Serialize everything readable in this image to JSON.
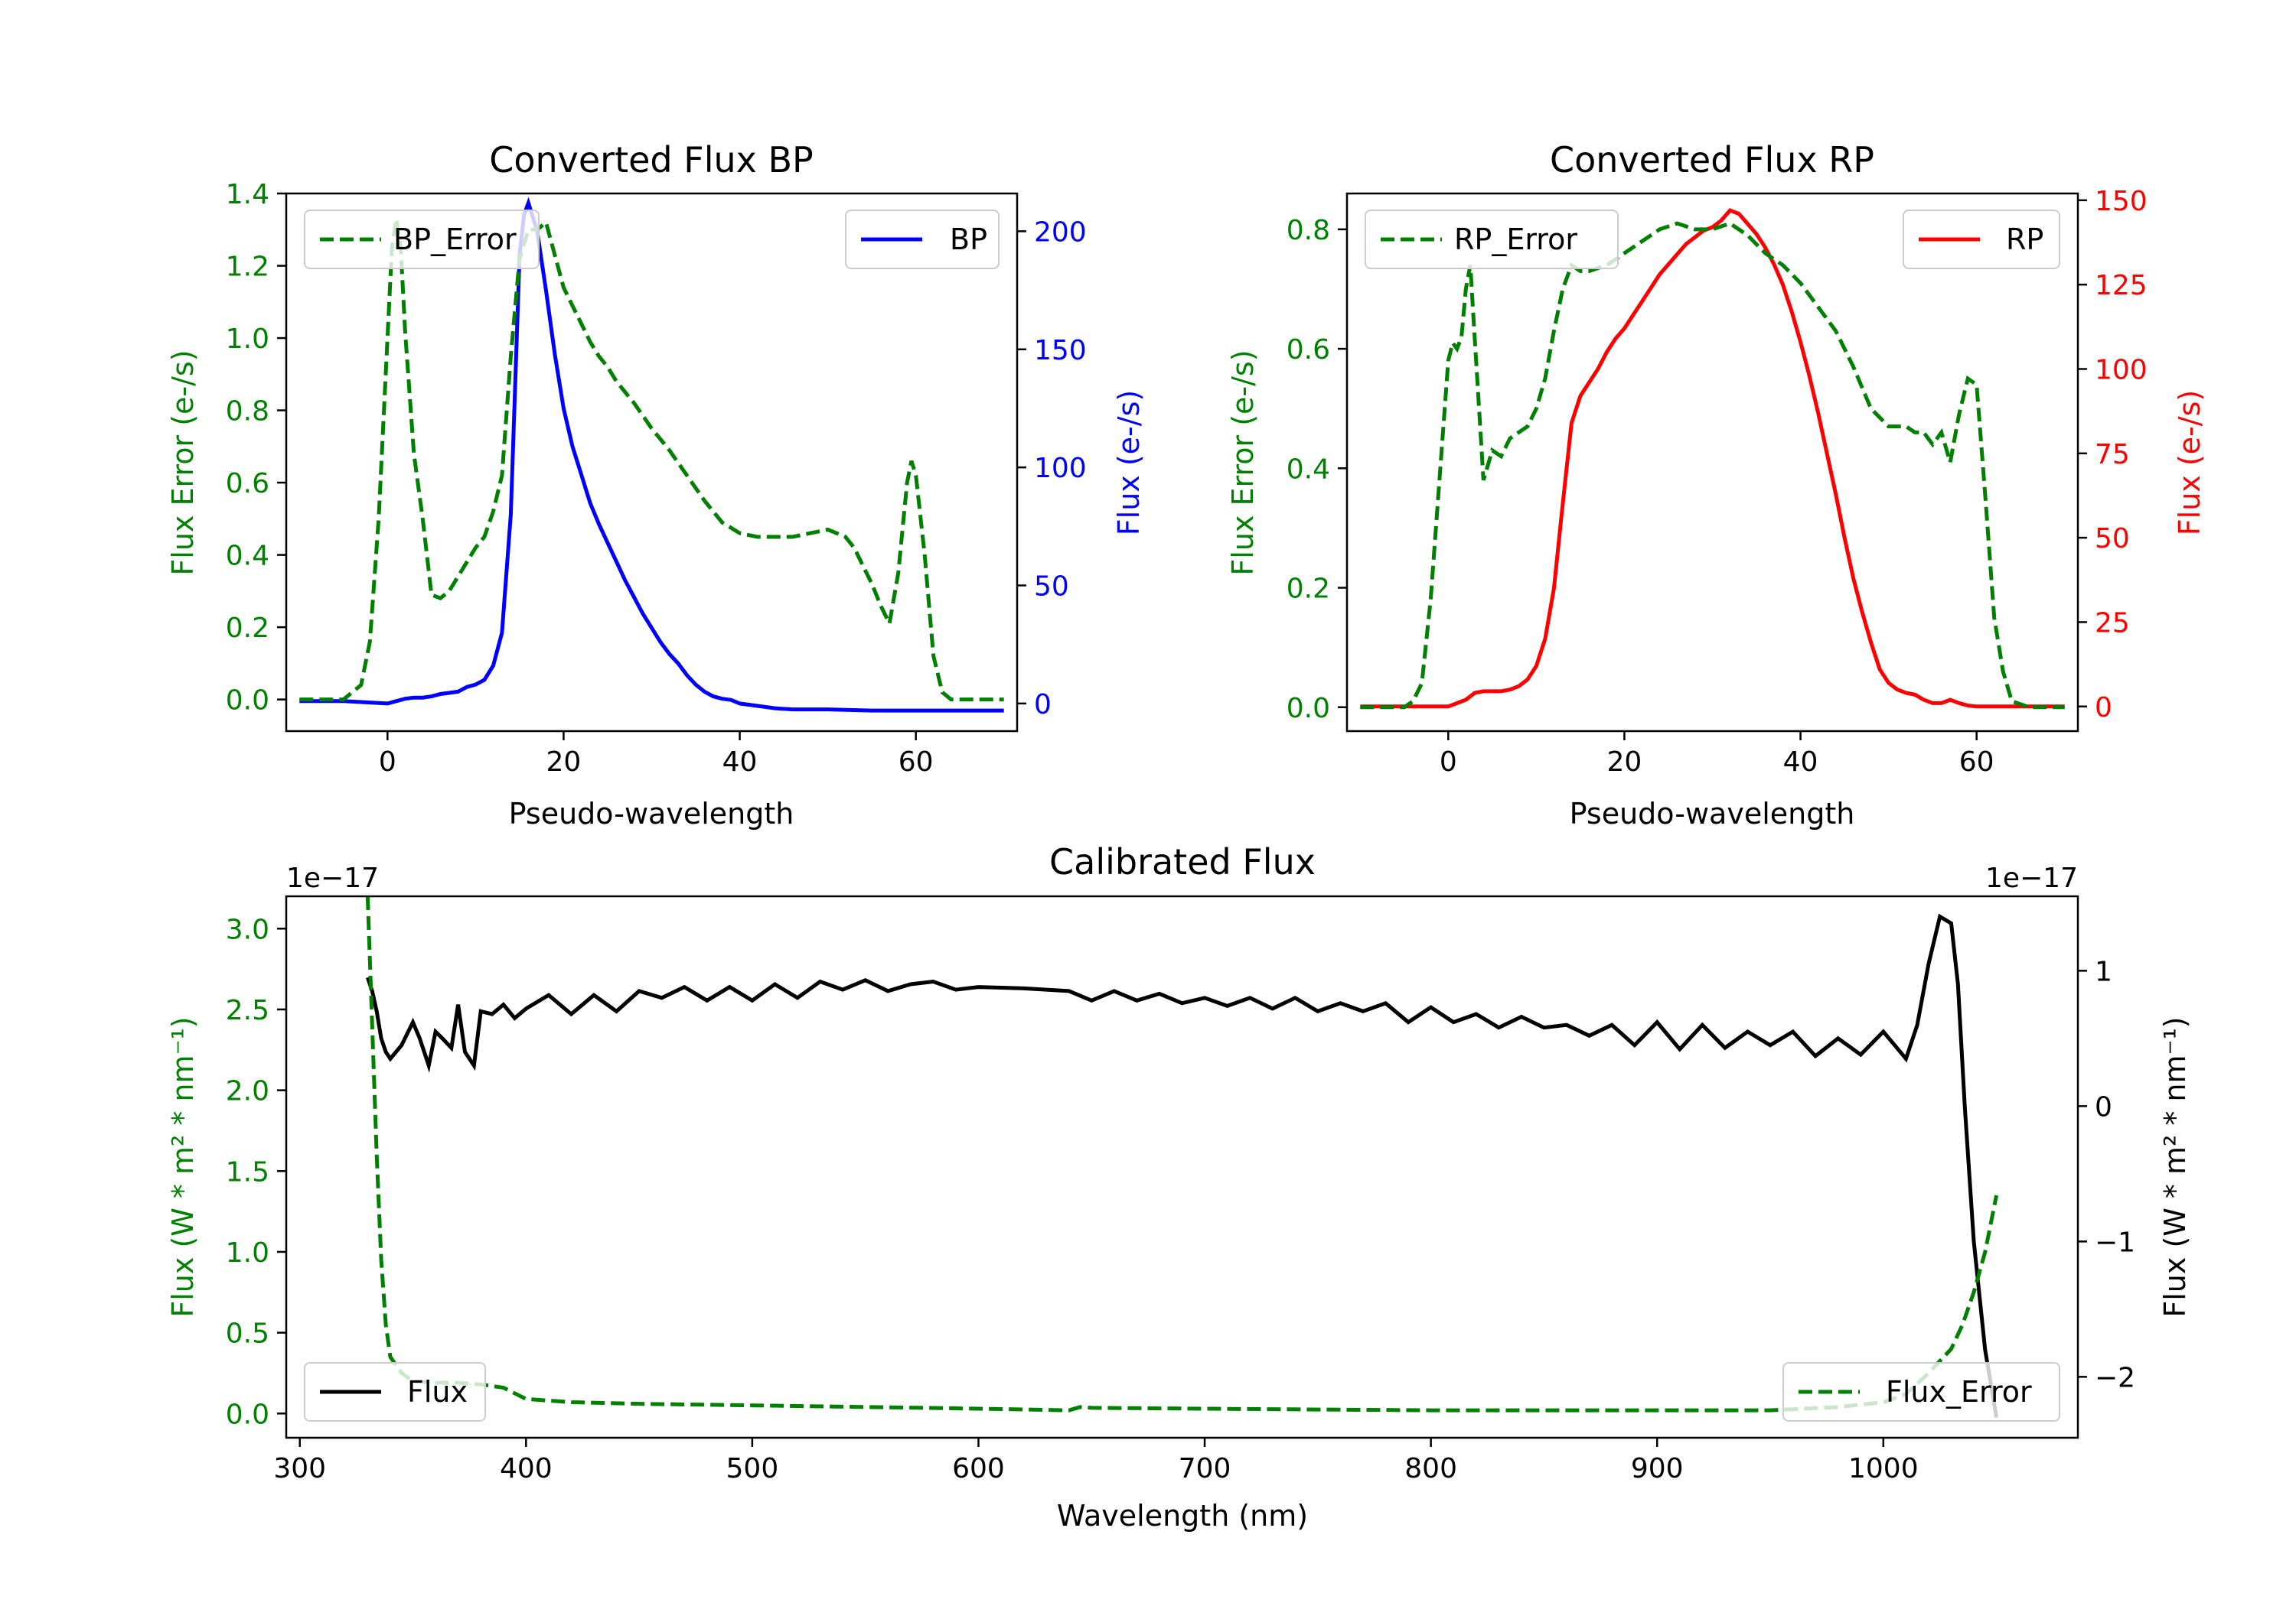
{
  "charts": [
    {
      "title": "Converted Flux BP",
      "xlabel": "Pseudo-wavelength",
      "ylabel_left": "Flux Error (e-/s)",
      "ylabel_right": "Flux (e-/s)",
      "left_color": "#008000",
      "right_color": "#0000ff",
      "xlim": [
        -11.5,
        71.5
      ],
      "ylim_left": [
        -0.0875,
        1.4
      ],
      "ylim_right": [
        -11.7,
        216
      ],
      "xticks": [
        0,
        20,
        40,
        60
      ],
      "yticks_left": [
        0.0,
        0.2,
        0.4,
        0.6,
        0.8,
        1.0,
        1.2,
        1.4
      ],
      "yticks_right": [
        0,
        50,
        100,
        150,
        200
      ],
      "tick_decimals_left": 1,
      "tick_decimals_right": 0,
      "offset_left": "",
      "offset_right": "",
      "legend_left": {
        "label": "BP_Error",
        "position": "upper-left"
      },
      "legend_right": {
        "label": "BP",
        "position": "upper-right"
      },
      "series_left": {
        "name": "BP_Error",
        "style": "dashed",
        "x": [
          -10,
          -7,
          -5,
          -3,
          -2,
          -1,
          0,
          0.5,
          1,
          1.5,
          2,
          3,
          4,
          5,
          6,
          7,
          8,
          9,
          10,
          11,
          12,
          13,
          14,
          15,
          16,
          17,
          18,
          19,
          20,
          21,
          22,
          23,
          24,
          25,
          26,
          28,
          30,
          32,
          34,
          36,
          38,
          40,
          42,
          44,
          46,
          48,
          50,
          51,
          52,
          53,
          54,
          55,
          56,
          57,
          58,
          59,
          59.5,
          60,
          61,
          62,
          63,
          64,
          66,
          68,
          70
        ],
        "y": [
          0,
          0,
          0,
          0.04,
          0.16,
          0.5,
          1.0,
          1.25,
          1.33,
          1.25,
          1.02,
          0.68,
          0.5,
          0.29,
          0.28,
          0.3,
          0.34,
          0.38,
          0.42,
          0.45,
          0.52,
          0.62,
          0.95,
          1.22,
          1.3,
          1.3,
          1.32,
          1.23,
          1.14,
          1.09,
          1.04,
          0.99,
          0.95,
          0.92,
          0.88,
          0.82,
          0.75,
          0.69,
          0.62,
          0.55,
          0.49,
          0.46,
          0.45,
          0.45,
          0.45,
          0.46,
          0.47,
          0.46,
          0.45,
          0.42,
          0.37,
          0.32,
          0.26,
          0.21,
          0.35,
          0.6,
          0.66,
          0.62,
          0.4,
          0.12,
          0.02,
          0,
          0,
          0,
          0
        ]
      },
      "series_right": {
        "name": "BP",
        "style": "solid",
        "x": [
          -10,
          -5,
          0,
          1,
          2,
          3,
          4,
          5,
          6,
          7,
          8,
          9,
          10,
          11,
          12,
          13,
          14,
          15,
          15.5,
          16,
          17,
          18,
          19,
          20,
          21,
          22,
          23,
          24,
          25,
          26,
          27,
          28,
          29,
          30,
          31,
          32,
          33,
          34,
          35,
          36,
          37,
          38,
          39,
          40,
          42,
          44,
          46,
          48,
          50,
          55,
          60,
          65,
          70
        ],
        "y": [
          1,
          1,
          0,
          1,
          2,
          2.5,
          2.5,
          3,
          4,
          4.5,
          5,
          7,
          8,
          10,
          16,
          30,
          80,
          190,
          207,
          212,
          200,
          175,
          148,
          125,
          109,
          97,
          85,
          76,
          68,
          60,
          52,
          45,
          38,
          32,
          26,
          21,
          17,
          12,
          8,
          5,
          3,
          2,
          1.5,
          0,
          -1,
          -2,
          -2.5,
          -2.5,
          -2.5,
          -3,
          -3,
          -3,
          -3
        ]
      }
    },
    {
      "title": "Converted Flux RP",
      "xlabel": "Pseudo-wavelength",
      "ylabel_left": "Flux Error (e-/s)",
      "ylabel_right": "Flux (e-/s)",
      "left_color": "#008000",
      "right_color": "#ff0000",
      "xlim": [
        -11.5,
        71.5
      ],
      "ylim_left": [
        -0.04,
        0.86
      ],
      "ylim_right": [
        -7.3,
        152
      ],
      "xticks": [
        0,
        20,
        40,
        60
      ],
      "yticks_left": [
        0.0,
        0.2,
        0.4,
        0.6,
        0.8
      ],
      "yticks_right": [
        0,
        25,
        50,
        75,
        100,
        125,
        150
      ],
      "tick_decimals_left": 1,
      "tick_decimals_right": 0,
      "offset_left": "",
      "offset_right": "",
      "legend_left": {
        "label": "RP_Error",
        "position": "upper-left"
      },
      "legend_right": {
        "label": "RP",
        "position": "upper-right"
      },
      "series_left": {
        "name": "RP_Error",
        "style": "dashed",
        "x": [
          -10,
          -5,
          -4,
          -3,
          -2,
          -1,
          0,
          0.5,
          1,
          1.5,
          2,
          2.5,
          3,
          3.5,
          4,
          5,
          6,
          7,
          8,
          9,
          10,
          11,
          12,
          13,
          14,
          15,
          16,
          18,
          20,
          22,
          24,
          26,
          28,
          30,
          32,
          34,
          36,
          38,
          40,
          42,
          44,
          46,
          48,
          50,
          52,
          53,
          54,
          55,
          56,
          57,
          58,
          59,
          60,
          61,
          62,
          63,
          64,
          66,
          68,
          70
        ],
        "y": [
          0,
          0,
          0.01,
          0.04,
          0.18,
          0.38,
          0.58,
          0.61,
          0.6,
          0.62,
          0.7,
          0.74,
          0.62,
          0.5,
          0.38,
          0.43,
          0.42,
          0.45,
          0.46,
          0.47,
          0.5,
          0.55,
          0.63,
          0.7,
          0.74,
          0.73,
          0.73,
          0.74,
          0.76,
          0.78,
          0.8,
          0.81,
          0.8,
          0.8,
          0.81,
          0.79,
          0.76,
          0.74,
          0.71,
          0.67,
          0.63,
          0.57,
          0.5,
          0.47,
          0.47,
          0.46,
          0.46,
          0.44,
          0.46,
          0.41,
          0.49,
          0.55,
          0.54,
          0.35,
          0.15,
          0.06,
          0.01,
          0,
          0,
          0
        ]
      },
      "series_right": {
        "name": "RP",
        "style": "solid",
        "x": [
          -10,
          -5,
          0,
          1,
          2,
          3,
          4,
          5,
          6,
          7,
          8,
          9,
          10,
          11,
          12,
          13,
          14,
          15,
          16,
          17,
          18,
          19,
          20,
          21,
          22,
          23,
          24,
          25,
          26,
          27,
          28,
          29,
          30,
          31,
          32,
          33,
          34,
          35,
          36,
          37,
          38,
          39,
          40,
          41,
          42,
          43,
          44,
          45,
          46,
          47,
          48,
          49,
          50,
          51,
          52,
          53,
          54,
          55,
          56,
          57,
          58,
          59,
          60,
          62,
          65,
          70
        ],
        "y": [
          0,
          0,
          0,
          1,
          2,
          4,
          4.5,
          4.5,
          4.5,
          5,
          6,
          8,
          12,
          20,
          35,
          60,
          84,
          92,
          96,
          100,
          105,
          109,
          112,
          116,
          120,
          124,
          128,
          131,
          134,
          137,
          139,
          141,
          142,
          144,
          147,
          146,
          143,
          140,
          136,
          131,
          125,
          117,
          108,
          98,
          87,
          75,
          63,
          50,
          38,
          28,
          19,
          11,
          7,
          5,
          4,
          3.5,
          2,
          1,
          1,
          2,
          1,
          0.3,
          0,
          0,
          0,
          0
        ]
      }
    },
    {
      "title": "Calibrated Flux",
      "xlabel": "Wavelength (nm)",
      "ylabel_left": "Flux (W * m² * nm⁻¹)",
      "ylabel_right": "Flux (W * m² * nm⁻¹)",
      "left_color": "#008000",
      "right_color": "#000000",
      "xlim": [
        294,
        1086
      ],
      "ylim_left": [
        -0.15,
        3.2
      ],
      "ylim_right": [
        -2.45,
        1.55
      ],
      "xticks": [
        300,
        400,
        500,
        600,
        700,
        800,
        900,
        1000
      ],
      "yticks_left": [
        0.0,
        0.5,
        1.0,
        1.5,
        2.0,
        2.5,
        3.0
      ],
      "yticks_right": [
        -2,
        -1,
        0,
        1
      ],
      "tick_decimals_left": 1,
      "tick_decimals_right": 0,
      "offset_left": "1e−17",
      "offset_right": "1e−17",
      "legend_left": {
        "label": "Flux",
        "position": "lower-left"
      },
      "legend_right": {
        "label": "Flux_Error",
        "position": "lower-right"
      },
      "series_left": {
        "name": "Flux_Error",
        "style": "dashed",
        "x": [
          330,
          332,
          334,
          336,
          338,
          340,
          345,
          350,
          360,
          370,
          380,
          390,
          400,
          420,
          450,
          500,
          550,
          600,
          620,
          640,
          645,
          650,
          700,
          800,
          900,
          950,
          980,
          1000,
          1010,
          1020,
          1030,
          1035,
          1040,
          1045,
          1050
        ],
        "y": [
          3.2,
          2.4,
          1.6,
          0.95,
          0.55,
          0.35,
          0.25,
          0.2,
          0.19,
          0.19,
          0.18,
          0.16,
          0.09,
          0.07,
          0.06,
          0.05,
          0.04,
          0.03,
          0.025,
          0.02,
          0.04,
          0.035,
          0.03,
          0.02,
          0.02,
          0.02,
          0.04,
          0.07,
          0.12,
          0.25,
          0.4,
          0.55,
          0.75,
          1.0,
          1.35
        ]
      },
      "series_right": {
        "name": "Flux",
        "style": "solid",
        "x": [
          330,
          332,
          334,
          336,
          338,
          340,
          345,
          350,
          353,
          357,
          360,
          363,
          367,
          370,
          373,
          377,
          380,
          385,
          390,
          395,
          400,
          410,
          420,
          430,
          440,
          450,
          460,
          470,
          480,
          490,
          500,
          510,
          520,
          530,
          540,
          550,
          560,
          570,
          580,
          590,
          600,
          620,
          640,
          650,
          660,
          670,
          680,
          690,
          700,
          710,
          720,
          730,
          740,
          750,
          760,
          770,
          780,
          790,
          800,
          810,
          820,
          830,
          840,
          850,
          860,
          870,
          880,
          890,
          900,
          910,
          920,
          930,
          940,
          950,
          960,
          970,
          980,
          990,
          1000,
          1005,
          1010,
          1015,
          1020,
          1025,
          1030,
          1033,
          1036,
          1040,
          1045,
          1050
        ],
        "y": [
          0.95,
          0.85,
          0.7,
          0.5,
          0.4,
          0.35,
          0.45,
          0.62,
          0.5,
          0.3,
          0.55,
          0.5,
          0.43,
          0.75,
          0.4,
          0.3,
          0.7,
          0.68,
          0.75,
          0.65,
          0.72,
          0.82,
          0.68,
          0.82,
          0.7,
          0.85,
          0.8,
          0.88,
          0.78,
          0.88,
          0.78,
          0.9,
          0.8,
          0.92,
          0.86,
          0.93,
          0.85,
          0.9,
          0.92,
          0.86,
          0.88,
          0.87,
          0.85,
          0.78,
          0.85,
          0.78,
          0.83,
          0.76,
          0.8,
          0.74,
          0.8,
          0.72,
          0.8,
          0.7,
          0.76,
          0.7,
          0.76,
          0.62,
          0.73,
          0.62,
          0.68,
          0.58,
          0.66,
          0.58,
          0.6,
          0.52,
          0.6,
          0.45,
          0.62,
          0.42,
          0.6,
          0.43,
          0.55,
          0.45,
          0.55,
          0.37,
          0.5,
          0.38,
          0.55,
          0.45,
          0.35,
          0.6,
          1.05,
          1.4,
          1.35,
          0.9,
          0.0,
          -1.0,
          -1.8,
          -2.3
        ]
      }
    }
  ]
}
